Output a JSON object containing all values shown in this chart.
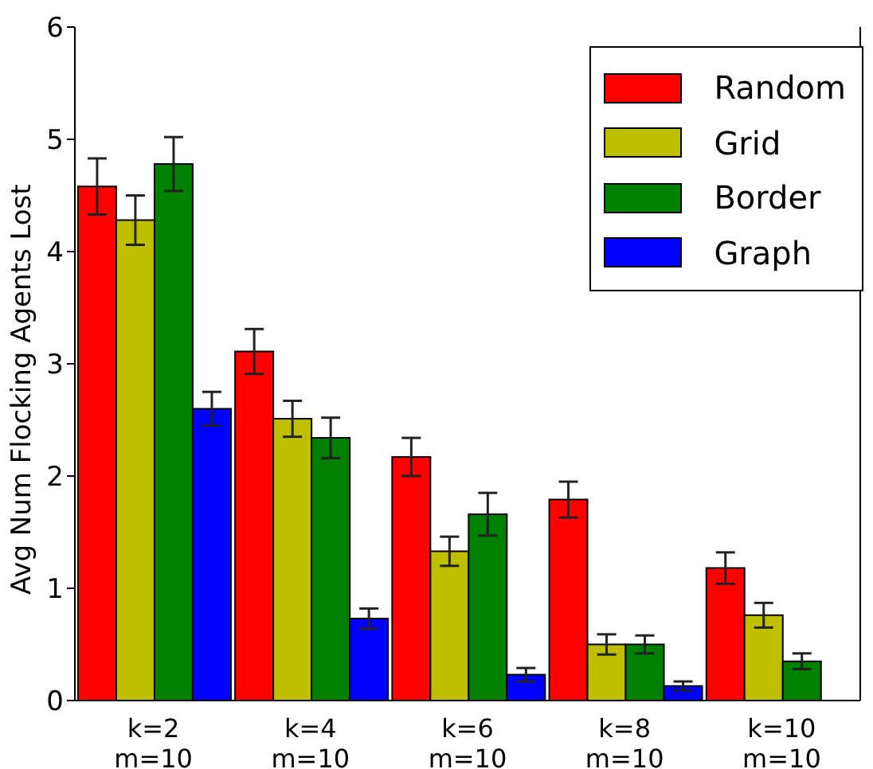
{
  "chart_data": {
    "type": "bar",
    "ylabel": "Avg Num Flocking Agents Lost",
    "categories": [
      "k=2\nm=10",
      "k=4\nm=10",
      "k=6\nm=10",
      "k=8\nm=10",
      "k=10\nm=10"
    ],
    "series": [
      {
        "name": "Random",
        "color": "#ff0000",
        "values": [
          4.58,
          3.11,
          2.17,
          1.79,
          1.18
        ],
        "errors": [
          0.25,
          0.2,
          0.17,
          0.16,
          0.14
        ]
      },
      {
        "name": "Grid",
        "color": "#bfbf00",
        "values": [
          4.28,
          2.51,
          1.33,
          0.5,
          0.76
        ],
        "errors": [
          0.22,
          0.16,
          0.13,
          0.09,
          0.11
        ]
      },
      {
        "name": "Border",
        "color": "#008000",
        "values": [
          4.78,
          2.34,
          1.66,
          0.5,
          0.35
        ],
        "errors": [
          0.24,
          0.18,
          0.19,
          0.08,
          0.07
        ]
      },
      {
        "name": "Graph",
        "color": "#0000ff",
        "values": [
          2.6,
          0.73,
          0.23,
          0.13,
          0
        ],
        "errors": [
          0.15,
          0.09,
          0.06,
          0.04,
          null
        ]
      }
    ],
    "ylim": [
      0,
      6
    ],
    "yticks": [
      0,
      1,
      2,
      3,
      4,
      5,
      6
    ],
    "grid": false,
    "legend": "top right"
  }
}
